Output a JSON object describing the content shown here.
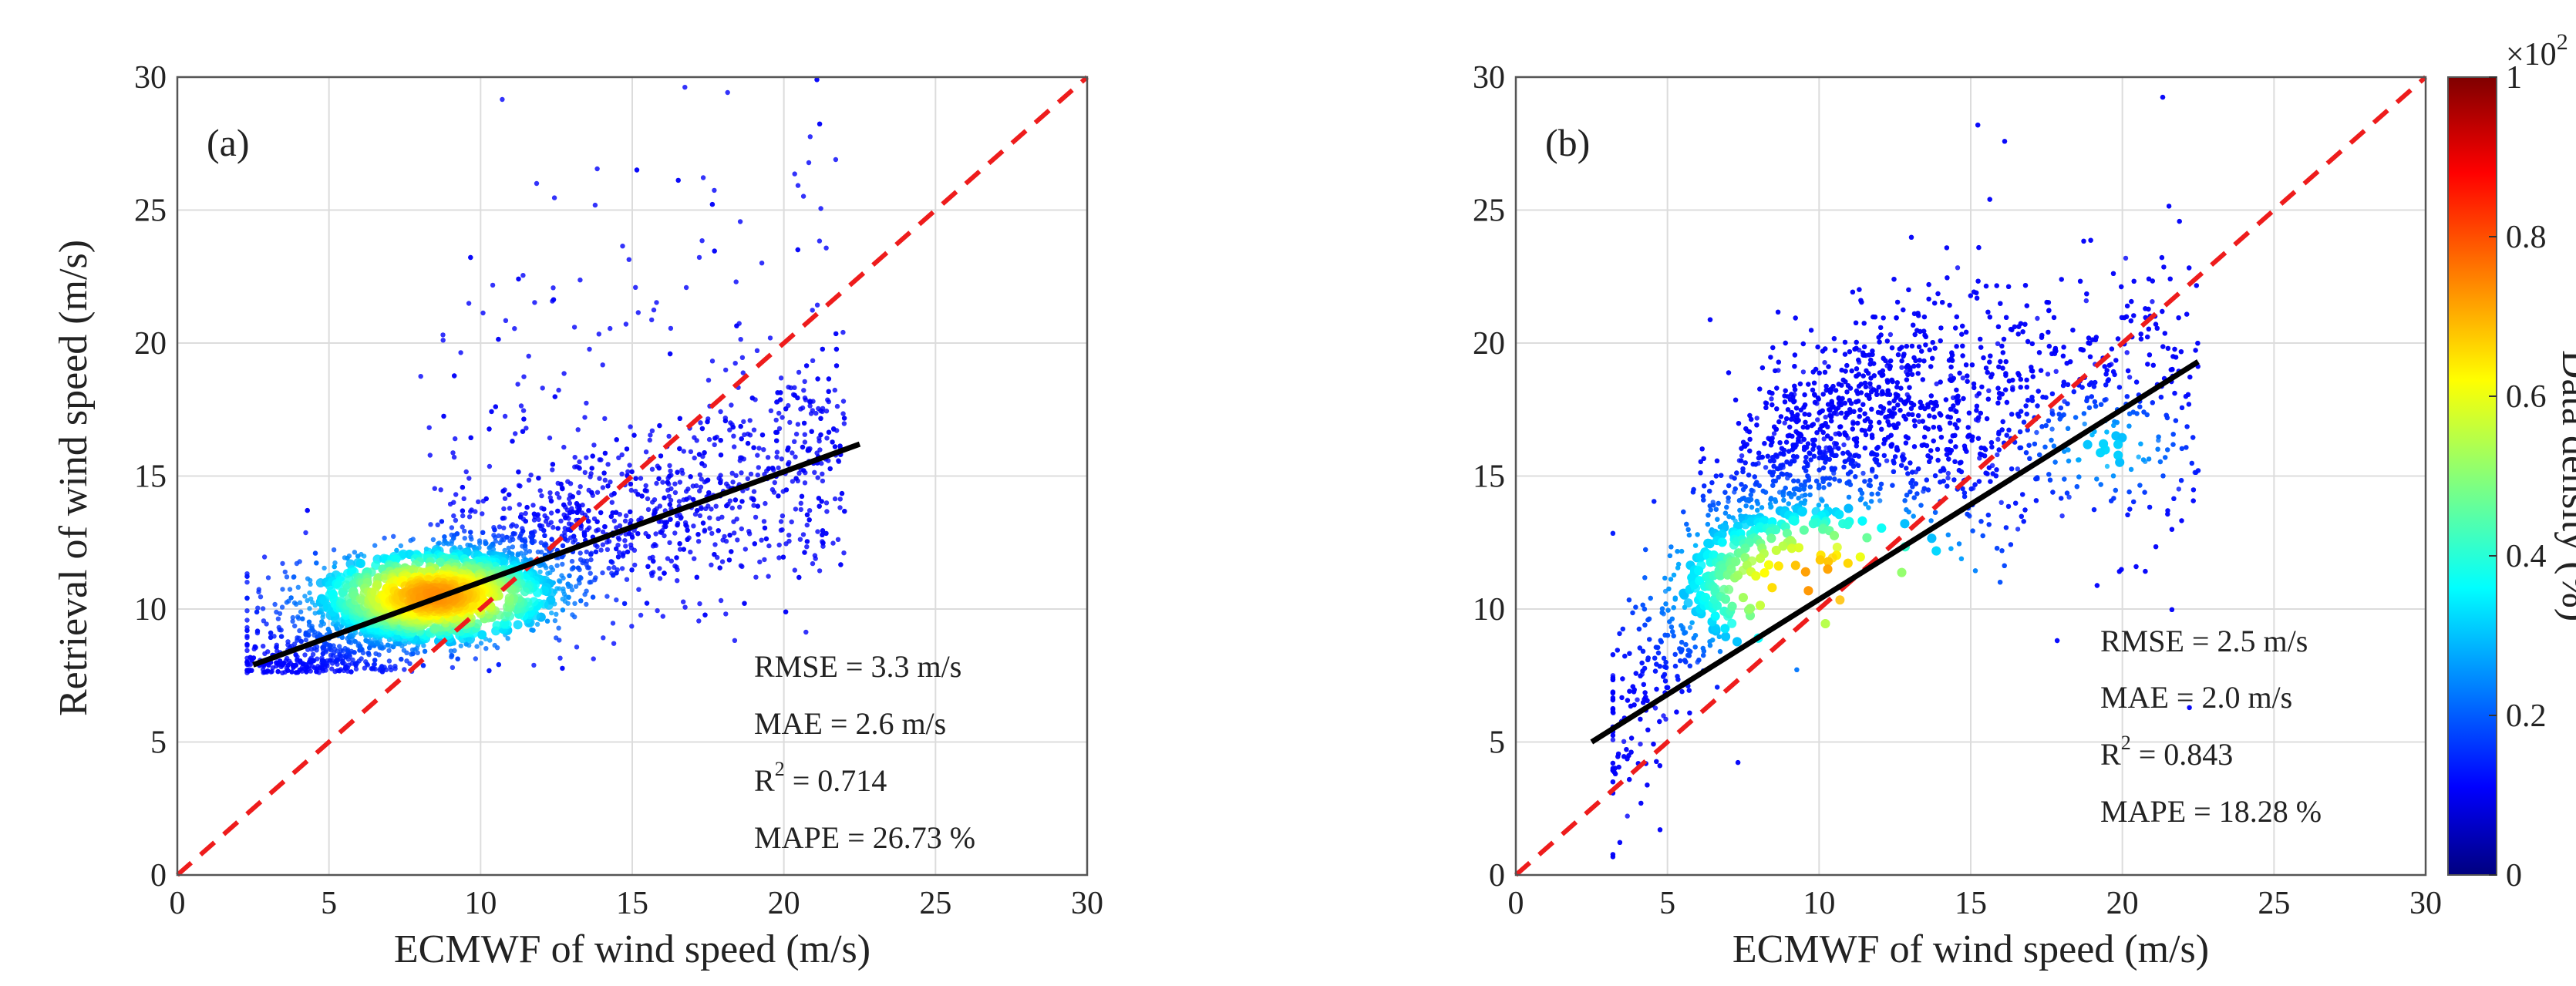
{
  "chart_data": [
    {
      "type": "scatter",
      "panel_label": "(a)",
      "xlabel": "ECMWF of wind speed (m/s)",
      "ylabel": "Retrieval of wind speed (m/s)",
      "xlim": [
        0,
        30
      ],
      "ylim": [
        0,
        30
      ],
      "xticks": [
        "0",
        "5",
        "10",
        "15",
        "20",
        "25",
        "30"
      ],
      "yticks": [
        "0",
        "5",
        "10",
        "15",
        "20",
        "25",
        "30"
      ],
      "grid": true,
      "reference_line": {
        "style": "red dashed 1:1",
        "x": [
          0,
          30
        ],
        "y": [
          0,
          30
        ]
      },
      "fit_line": {
        "x": [
          2.5,
          22.5
        ],
        "y": [
          7.9,
          16.2
        ]
      },
      "density_core": {
        "x_range": [
          2.5,
          22
        ],
        "peak": [
          8.5,
          10.5
        ]
      },
      "stats": {
        "rmse_label": "RMSE = 3.3 m/s",
        "mae_label": "MAE = 2.6 m/s",
        "r2_prefix": "R",
        "r2_sup": "2",
        "r2_value": " = 0.714",
        "mape_label": "MAPE = 26.73 %"
      }
    },
    {
      "type": "scatter",
      "panel_label": "(b)",
      "xlabel": "ECMWF of wind speed (m/s)",
      "ylabel": "",
      "xlim": [
        0,
        30
      ],
      "ylim": [
        0,
        30
      ],
      "xticks": [
        "0",
        "5",
        "10",
        "15",
        "20",
        "25",
        "30"
      ],
      "yticks": [
        "0",
        "5",
        "10",
        "15",
        "20",
        "25",
        "30"
      ],
      "grid": true,
      "reference_line": {
        "style": "red dashed 1:1",
        "x": [
          0,
          30
        ],
        "y": [
          0,
          30
        ]
      },
      "fit_line": {
        "x": [
          2.5,
          22.5
        ],
        "y": [
          5.0,
          19.3
        ]
      },
      "density_core": {
        "x_range": [
          3,
          22.5
        ],
        "peak": [
          10,
          10.5
        ]
      },
      "stats": {
        "rmse_label": "RMSE = 2.5 m/s",
        "mae_label": "MAE = 2.0 m/s",
        "r2_prefix": "R",
        "r2_sup": "2",
        "r2_value": " = 0.843",
        "mape_label": "MAPE = 18.28 %"
      }
    }
  ],
  "colorbar": {
    "label": "Data density (%)",
    "range": [
      0,
      1
    ],
    "ticks": [
      "0",
      "0.2",
      "0.4",
      "0.6",
      "0.8",
      "1"
    ],
    "multiplier_base": "×10",
    "multiplier_exp": "2",
    "colormap": [
      "#00007f",
      "#0000ff",
      "#00ffff",
      "#ffff00",
      "#ff0000",
      "#7f0000"
    ]
  }
}
